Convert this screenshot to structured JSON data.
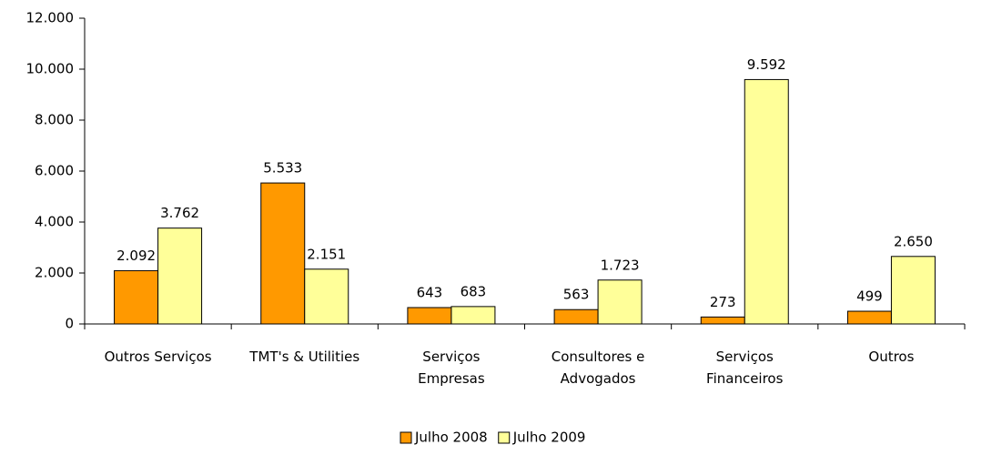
{
  "chart_data": {
    "type": "bar",
    "categories": [
      "Outros Serviços",
      "TMT's & Utilities",
      "Serviços\nEmpresas",
      "Consultores e\nAdvogados",
      "Serviços\nFinanceiros",
      "Outros"
    ],
    "series": [
      {
        "name": "Julho 2008",
        "color": "#ff9900",
        "values": [
          2092,
          5533,
          643,
          563,
          273,
          499
        ],
        "value_labels": [
          "2.092",
          "5.533",
          "643",
          "563",
          "273",
          "499"
        ]
      },
      {
        "name": "Julho 2009",
        "color": "#ffff99",
        "values": [
          3762,
          2151,
          683,
          1723,
          9592,
          2650
        ],
        "value_labels": [
          "3.762",
          "2.151",
          "683",
          "1.723",
          "9.592",
          "2.650"
        ]
      }
    ],
    "ylim": [
      0,
      12000
    ],
    "yticks": [
      0,
      {
        "value": 2000,
        "label": "2.000"
      },
      {
        "value": 4000,
        "label": "4.000"
      },
      {
        "value": 6000,
        "label": "6.000"
      },
      {
        "value": 8000,
        "label": "8.000"
      },
      {
        "value": 10000,
        "label": "10.000"
      },
      {
        "value": 12000,
        "label": "12.000"
      }
    ],
    "grid": false,
    "legend": "bottom"
  }
}
